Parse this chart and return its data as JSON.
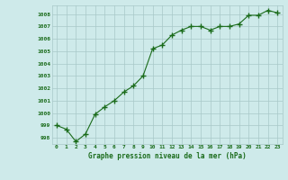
{
  "x": [
    0,
    1,
    2,
    3,
    4,
    5,
    6,
    7,
    8,
    9,
    10,
    11,
    12,
    13,
    14,
    15,
    16,
    17,
    18,
    19,
    20,
    21,
    22,
    23
  ],
  "y": [
    999.0,
    998.7,
    997.7,
    998.3,
    999.9,
    1000.5,
    1001.0,
    1001.7,
    1002.2,
    1003.0,
    1005.2,
    1005.5,
    1006.3,
    1006.7,
    1007.0,
    1007.0,
    1006.7,
    1007.0,
    1007.0,
    1007.2,
    1007.9,
    1007.9,
    1008.3,
    1008.1
  ],
  "line_color": "#1a6b1a",
  "marker": "+",
  "marker_color": "#1a6b1a",
  "marker_size": 4,
  "bg_color": "#ceeaea",
  "grid_color": "#a8c8c8",
  "xlabel": "Graphe pression niveau de la mer (hPa)",
  "xlabel_color": "#1a6b1a",
  "tick_color": "#1a6b1a",
  "ylim": [
    997.5,
    1008.7
  ],
  "yticks": [
    998,
    999,
    1000,
    1001,
    1002,
    1003,
    1004,
    1005,
    1006,
    1007,
    1008
  ],
  "xlim": [
    -0.5,
    23.5
  ],
  "xticks": [
    0,
    1,
    2,
    3,
    4,
    5,
    6,
    7,
    8,
    9,
    10,
    11,
    12,
    13,
    14,
    15,
    16,
    17,
    18,
    19,
    20,
    21,
    22,
    23
  ]
}
